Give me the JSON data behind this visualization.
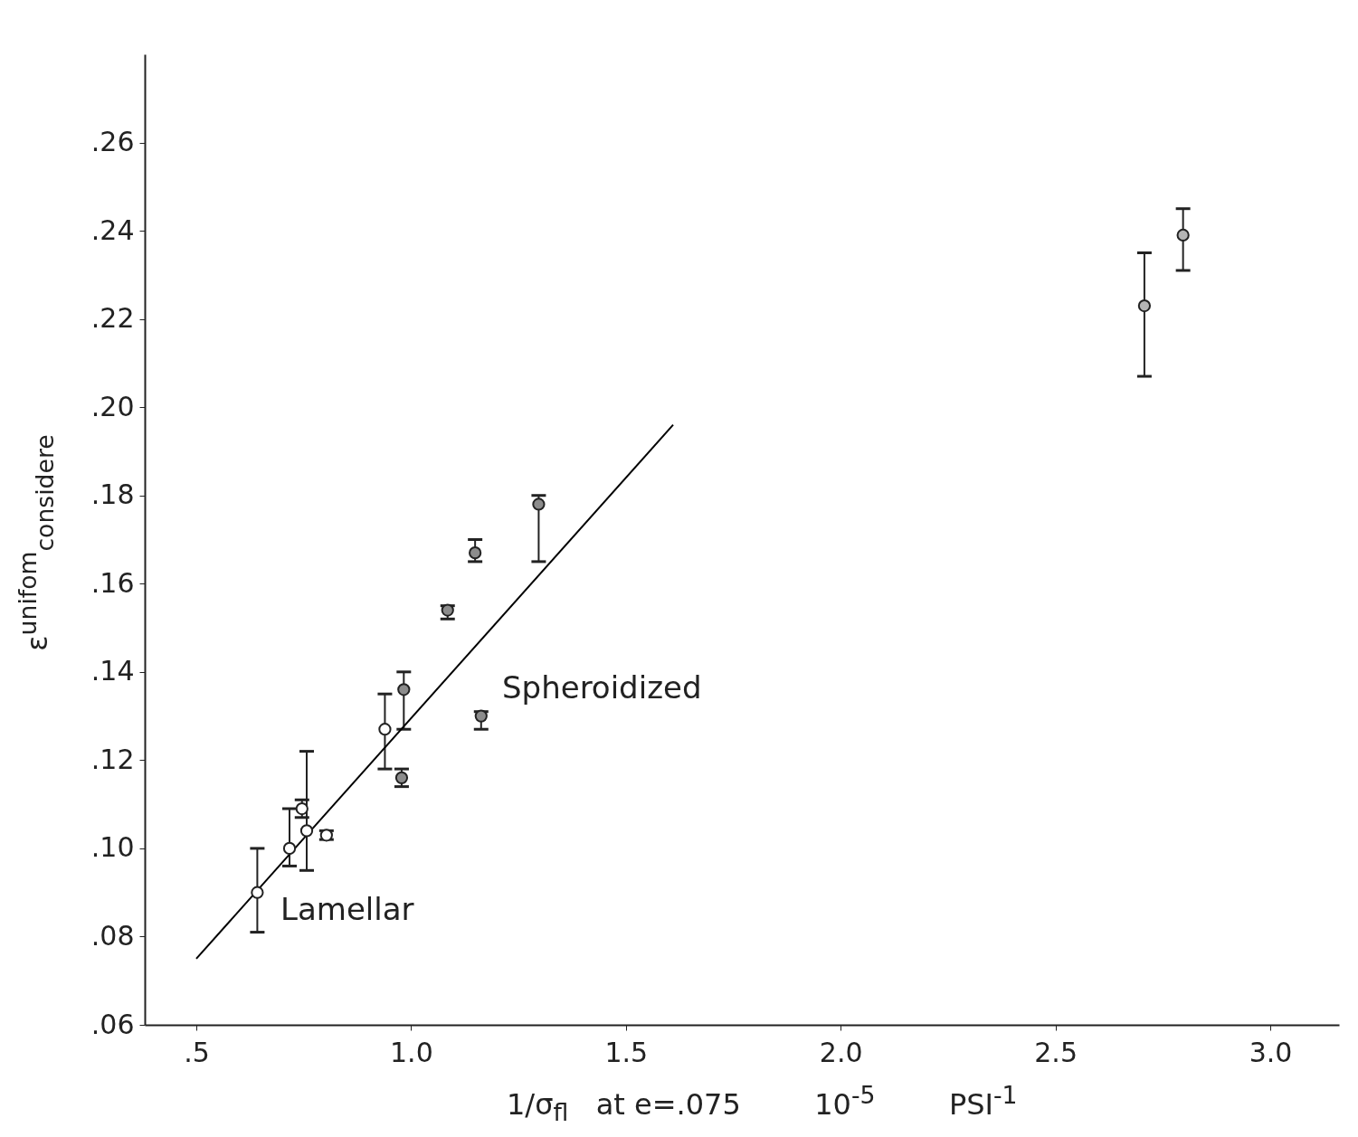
{
  "chart_data": {
    "type": "scatter",
    "xlabel": "1/σ$_{fl}$   at e=.075        10$^{-5}$        PSI$^{-1}$",
    "ylabel": "ε$^{unifom}$$_{considere}$",
    "xlim": [
      0.38,
      3.16
    ],
    "xticks": [
      {
        "value": 0.5,
        "label": ".5"
      },
      {
        "value": 1.0,
        "label": "1.0"
      },
      {
        "value": 1.5,
        "label": "1.5"
      },
      {
        "value": 2.0,
        "label": "2.0"
      },
      {
        "value": 2.5,
        "label": "2.5"
      },
      {
        "value": 3.0,
        "label": "3.0"
      }
    ],
    "ylim": [
      0.06,
      0.28
    ],
    "yticks": [
      {
        "value": 0.06,
        "label": ".06"
      },
      {
        "value": 0.08,
        "label": ".08"
      },
      {
        "value": 0.1,
        "label": ".10"
      },
      {
        "value": 0.12,
        "label": ".12"
      },
      {
        "value": 0.14,
        "label": ".14"
      },
      {
        "value": 0.16,
        "label": ".16"
      },
      {
        "value": 0.18,
        "label": ".18"
      },
      {
        "value": 0.2,
        "label": ".20"
      },
      {
        "value": 0.22,
        "label": ".22"
      },
      {
        "value": 0.24,
        "label": ".24"
      },
      {
        "value": 0.26,
        "label": ".26"
      }
    ],
    "series": [
      {
        "type": "scatter",
        "marker": "circle",
        "color": "#ffffff",
        "x": [
          0.642,
          0.717,
          0.757,
          0.746,
          0.803,
          0.939
        ],
        "values": [
          0.09,
          0.1,
          0.104,
          0.109,
          0.103,
          0.127
        ],
        "errors": [
          [
            0.081,
            0.1
          ],
          [
            0.096,
            0.109
          ],
          [
            0.095,
            0.122
          ],
          [
            0.107,
            0.111
          ],
          [
            0.102,
            0.104
          ],
          [
            0.118,
            0.135
          ]
        ]
      },
      {
        "type": "scatter",
        "marker": "circle",
        "color": "#8c8c8c",
        "x": [
          0.983,
          0.978,
          1.085,
          1.149,
          1.163,
          1.297
        ],
        "values": [
          0.136,
          0.116,
          0.154,
          0.167,
          0.13,
          0.178
        ],
        "errors": [
          [
            0.127,
            0.14
          ],
          [
            0.114,
            0.118
          ],
          [
            0.152,
            0.155
          ],
          [
            0.165,
            0.17
          ],
          [
            0.127,
            0.131
          ],
          [
            0.165,
            0.18
          ]
        ]
      },
      {
        "type": "scatter",
        "marker": "circle",
        "color": "#b5b5b5",
        "x": [
          2.707,
          2.797
        ],
        "values": [
          0.223,
          0.239
        ],
        "errors": [
          [
            0.207,
            0.235
          ],
          [
            0.231,
            0.245
          ]
        ]
      },
      {
        "type": "line",
        "color": "#000000",
        "x": [
          0.5,
          1.61
        ],
        "values": [
          0.075,
          0.196
        ]
      }
    ],
    "annotations": [
      "Lamellar",
      "Spheroidized"
    ]
  }
}
